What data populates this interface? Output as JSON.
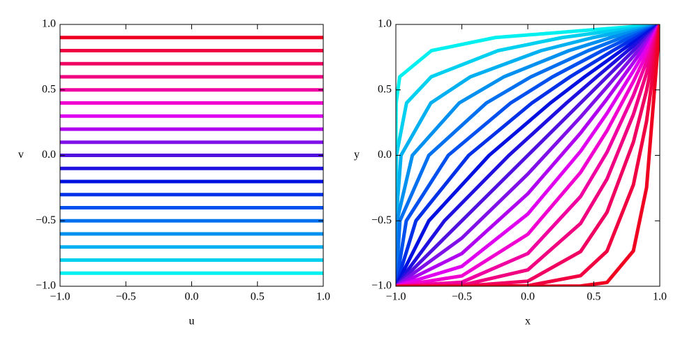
{
  "chart_data": [
    {
      "type": "line",
      "xlabel": "u",
      "ylabel": "v",
      "xlim": [
        -1,
        1
      ],
      "ylim": [
        -1,
        1
      ],
      "xticks": [
        {
          "value": -1,
          "label": "−1.0"
        },
        {
          "value": -0.5,
          "label": "−0.5"
        },
        {
          "value": 0,
          "label": "0.0"
        },
        {
          "value": 0.5,
          "label": "0.5"
        },
        {
          "value": 1,
          "label": "1.0"
        }
      ],
      "yticks": [
        {
          "value": -1,
          "label": "−1.0"
        },
        {
          "value": -0.5,
          "label": "−0.5"
        },
        {
          "value": 0,
          "label": "0.0"
        },
        {
          "value": 0.5,
          "label": "0.5"
        },
        {
          "value": 1,
          "label": "1.0"
        }
      ],
      "x": [
        -1,
        1
      ],
      "series": [
        {
          "color": "#00f0f0",
          "values": [
            -0.9,
            -0.9
          ]
        },
        {
          "color": "#00d0f0",
          "values": [
            -0.8,
            -0.8
          ]
        },
        {
          "color": "#00b0f0",
          "values": [
            -0.7,
            -0.7
          ]
        },
        {
          "color": "#0090f0",
          "values": [
            -0.6,
            -0.6
          ]
        },
        {
          "color": "#0070f0",
          "values": [
            -0.5,
            -0.5
          ]
        },
        {
          "color": "#0050f0",
          "values": [
            -0.4,
            -0.4
          ]
        },
        {
          "color": "#0030e8",
          "values": [
            -0.3,
            -0.3
          ]
        },
        {
          "color": "#0010e0",
          "values": [
            -0.2,
            -0.2
          ]
        },
        {
          "color": "#2010e0",
          "values": [
            -0.1,
            -0.1
          ]
        },
        {
          "color": "#5010e0",
          "values": [
            0,
            0
          ]
        },
        {
          "color": "#8010e8",
          "values": [
            0.1,
            0.1
          ]
        },
        {
          "color": "#b000f0",
          "values": [
            0.2,
            0.2
          ]
        },
        {
          "color": "#e000f0",
          "values": [
            0.3,
            0.3
          ]
        },
        {
          "color": "#f000d0",
          "values": [
            0.4,
            0.4
          ]
        },
        {
          "color": "#f000a0",
          "values": [
            0.5,
            0.5
          ]
        },
        {
          "color": "#f00080",
          "values": [
            0.6,
            0.6
          ]
        },
        {
          "color": "#f00060",
          "values": [
            0.7,
            0.7
          ]
        },
        {
          "color": "#f00040",
          "values": [
            0.8,
            0.8
          ]
        },
        {
          "color": "#f00020",
          "values": [
            0.9,
            0.9
          ]
        }
      ]
    },
    {
      "type": "line",
      "xlabel": "x",
      "ylabel": "y",
      "xlim": [
        -1,
        1
      ],
      "ylim": [
        -1,
        1
      ],
      "xticks": [
        {
          "value": -1,
          "label": "−1.0"
        },
        {
          "value": -0.5,
          "label": "−0.5"
        },
        {
          "value": 0,
          "label": "0.0"
        },
        {
          "value": 0.5,
          "label": "0.5"
        },
        {
          "value": 1,
          "label": "1.0"
        }
      ],
      "yticks": [
        {
          "value": -1,
          "label": "−1.0"
        },
        {
          "value": -0.5,
          "label": "−0.5"
        },
        {
          "value": 0,
          "label": "0.0"
        },
        {
          "value": 0.5,
          "label": "0.5"
        },
        {
          "value": 1,
          "label": "1.0"
        }
      ],
      "series": [
        {
          "color": "#00f0f0",
          "x": [
            -1,
            -1,
            -1,
            -0.998,
            -0.971,
            -0.73,
            -0.246,
            1
          ],
          "values": [
            -1,
            -0.5,
            0,
            0.4,
            0.6,
            0.8,
            0.9,
            1
          ]
        },
        {
          "color": "#00d0f0",
          "x": [
            -1,
            -1,
            -0.996,
            -0.919,
            -0.732,
            -0.225,
            0.261,
            1
          ],
          "values": [
            -1,
            -0.5,
            0,
            0.4,
            0.6,
            0.8,
            0.9,
            1
          ]
        },
        {
          "color": "#00b0f0",
          "x": [
            -1,
            -0.999,
            -0.961,
            -0.735,
            -0.435,
            0.101,
            0.495,
            1
          ],
          "values": [
            -1,
            -0.5,
            0,
            0.4,
            0.6,
            0.8,
            0.9,
            1
          ]
        },
        {
          "color": "#0090f0",
          "x": [
            -1,
            -0.992,
            -0.875,
            -0.52,
            -0.181,
            0.312,
            0.629,
            1
          ],
          "values": [
            -1,
            -0.5,
            0,
            0.4,
            0.6,
            0.8,
            0.9,
            1
          ]
        },
        {
          "color": "#0070f0",
          "x": [
            -1,
            -0.969,
            -0.75,
            -0.314,
            0.024,
            0.458,
            0.715,
            1
          ],
          "values": [
            -1,
            -0.5,
            0,
            0.4,
            0.6,
            0.8,
            0.9,
            1
          ]
        },
        {
          "color": "#0050f0",
          "x": [
            -1,
            -0.921,
            -0.603,
            -0.13,
            0.188,
            0.564,
            0.774,
            1
          ],
          "values": [
            -1,
            -0.5,
            0,
            0.4,
            0.6,
            0.8,
            0.9,
            1
          ]
        },
        {
          "color": "#0030e8",
          "x": [
            -1,
            -0.848,
            -0.448,
            0.031,
            0.321,
            0.645,
            0.818,
            1
          ],
          "values": [
            -1,
            -0.5,
            0,
            0.4,
            0.6,
            0.8,
            0.9,
            1
          ]
        },
        {
          "color": "#0010e0",
          "x": [
            -1,
            -0.75,
            -0.293,
            0.171,
            0.431,
            0.708,
            0.852,
            1
          ],
          "values": [
            -1,
            -0.5,
            0,
            0.4,
            0.6,
            0.8,
            0.9,
            1
          ]
        },
        {
          "color": "#2010e0",
          "x": [
            -1,
            -0.632,
            -0.143,
            0.293,
            0.523,
            0.758,
            0.878,
            1
          ],
          "values": [
            -1,
            -0.5,
            0,
            0.4,
            0.6,
            0.8,
            0.9,
            1
          ]
        },
        {
          "color": "#5010e0",
          "x": [
            -1,
            -0.5,
            0,
            0.4,
            0.6,
            0.8,
            0.9,
            1
          ],
          "values": [
            -1,
            -0.5,
            0,
            0.4,
            0.6,
            0.8,
            0.9,
            1
          ]
        },
        {
          "color": "#8010e8",
          "x": [
            -1,
            -0.5,
            0,
            0.4,
            0.6,
            0.8,
            0.9,
            1
          ],
          "values": [
            -1,
            -0.632,
            -0.143,
            0.293,
            0.523,
            0.758,
            0.878,
            1
          ]
        },
        {
          "color": "#b000f0",
          "x": [
            -1,
            -0.5,
            0,
            0.4,
            0.6,
            0.8,
            0.9,
            1
          ],
          "values": [
            -1,
            -0.75,
            -0.293,
            0.171,
            0.431,
            0.708,
            0.852,
            1
          ]
        },
        {
          "color": "#e000f0",
          "x": [
            -1,
            -0.5,
            0,
            0.4,
            0.6,
            0.8,
            0.9,
            1
          ],
          "values": [
            -1,
            -0.848,
            -0.448,
            0.031,
            0.321,
            0.645,
            0.818,
            1
          ]
        },
        {
          "color": "#f000d0",
          "x": [
            -1,
            -0.5,
            0,
            0.4,
            0.6,
            0.8,
            0.9,
            1
          ],
          "values": [
            -1,
            -0.921,
            -0.603,
            -0.13,
            0.188,
            0.564,
            0.774,
            1
          ]
        },
        {
          "color": "#f000a0",
          "x": [
            -1,
            -0.5,
            0,
            0.4,
            0.6,
            0.8,
            0.9,
            1
          ],
          "values": [
            -1,
            -0.969,
            -0.75,
            -0.314,
            0.024,
            0.458,
            0.715,
            1
          ]
        },
        {
          "color": "#f00080",
          "x": [
            -1,
            -0.5,
            0,
            0.4,
            0.6,
            0.8,
            0.9,
            1
          ],
          "values": [
            -1,
            -0.992,
            -0.875,
            -0.52,
            -0.181,
            0.312,
            0.629,
            1
          ]
        },
        {
          "color": "#f00060",
          "x": [
            -1,
            -0.5,
            0,
            0.4,
            0.6,
            0.8,
            0.9,
            1
          ],
          "values": [
            -1,
            -0.999,
            -0.961,
            -0.735,
            -0.435,
            0.101,
            0.495,
            1
          ]
        },
        {
          "color": "#f00040",
          "x": [
            -1,
            -0.5,
            0,
            0.4,
            0.6,
            0.8,
            0.9,
            1
          ],
          "values": [
            -1,
            -1,
            -0.996,
            -0.919,
            -0.732,
            -0.225,
            0.261,
            1
          ]
        },
        {
          "color": "#f00020",
          "x": [
            -1,
            -0.5,
            0,
            0.4,
            0.6,
            0.8,
            0.9,
            1
          ],
          "values": [
            -1,
            -1,
            -1,
            -0.998,
            -0.971,
            -0.73,
            -0.246,
            1
          ]
        }
      ]
    }
  ]
}
